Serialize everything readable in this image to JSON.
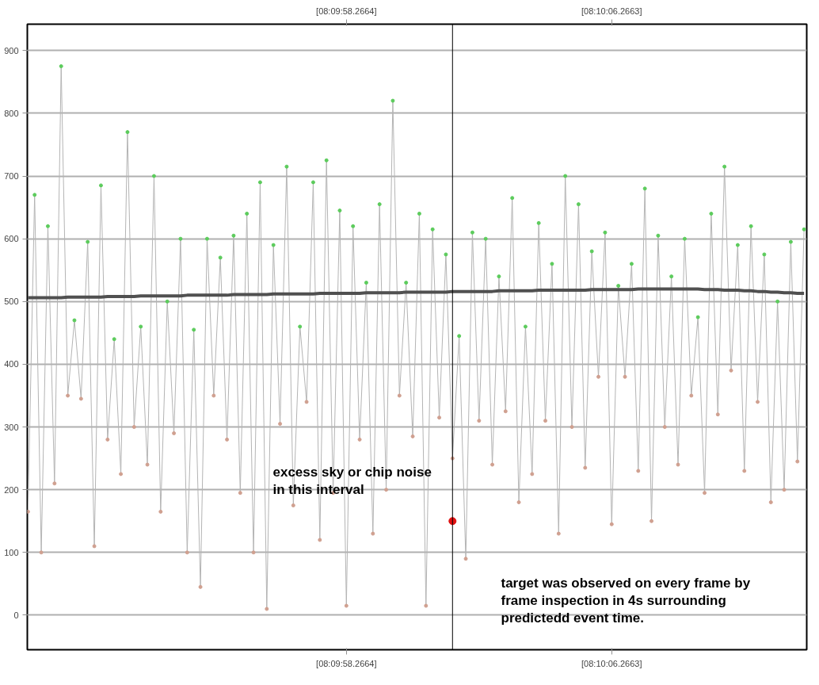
{
  "chart_data": {
    "type": "line",
    "categories": [
      null,
      null,
      null,
      null,
      null,
      null,
      null,
      null,
      null,
      null,
      null,
      null,
      null,
      null,
      null,
      null,
      null,
      null,
      null,
      null,
      null,
      null,
      null,
      null,
      null,
      null,
      null,
      null,
      null,
      null,
      null,
      null,
      null,
      null,
      null,
      null,
      null,
      null,
      null,
      null,
      null,
      null,
      null,
      null,
      null,
      null,
      null,
      null,
      "[08:09:58.2664]",
      null,
      null,
      null,
      null,
      null,
      null,
      null,
      null,
      null,
      null,
      null,
      null,
      null,
      null,
      null,
      null,
      null,
      null,
      null,
      null,
      null,
      null,
      null,
      null,
      null,
      null,
      null,
      null,
      null,
      null,
      null,
      null,
      null,
      null,
      null,
      null,
      null,
      null,
      null,
      "[08:10:06.2663]",
      null,
      null,
      null,
      null,
      null,
      null,
      null,
      null,
      null,
      null,
      null,
      null,
      null,
      null,
      null,
      null,
      null,
      null,
      null,
      null,
      null,
      null,
      null,
      null,
      null,
      null,
      null,
      null,
      null
    ],
    "ylim": [
      -55,
      942
    ],
    "yticks": [
      0,
      100,
      200,
      300,
      400,
      500,
      600,
      700,
      800,
      900
    ],
    "grid": "y",
    "marker": "circle",
    "line_style": "solid",
    "series": [
      {
        "type": "line",
        "color": "#b4b4b4",
        "values": [
          165,
          670,
          100,
          620,
          210,
          875,
          350,
          470,
          345,
          595,
          110,
          685,
          280,
          440,
          225,
          770,
          300,
          460,
          240,
          700,
          165,
          500,
          290,
          600,
          100,
          455,
          45,
          600,
          350,
          570,
          280,
          605,
          195,
          640,
          100,
          690,
          10,
          590,
          305,
          715,
          175,
          460,
          340,
          690,
          120,
          725,
          195,
          645,
          15,
          620,
          280,
          530,
          130,
          655,
          200,
          820,
          350,
          530,
          285,
          640,
          15,
          615,
          315,
          575,
          250,
          445,
          90,
          610,
          310,
          600,
          240,
          540,
          325,
          665,
          180,
          460,
          225,
          625,
          310,
          560,
          130,
          700,
          300,
          655,
          235,
          580,
          380,
          610,
          145,
          525,
          380,
          560,
          230,
          680,
          150,
          605,
          300,
          540,
          240,
          600,
          350,
          475,
          195,
          640,
          320,
          715,
          390,
          590,
          230,
          620,
          340,
          575,
          180,
          500,
          200,
          595,
          245,
          615
        ],
        "colors": [
          "#d0a090",
          "#5ccc5c",
          "#d0a090",
          "#5ccc5c",
          "#d0a090",
          "#5ccc5c",
          "#d0a090",
          "#5ccc5c",
          "#d0a090",
          "#5ccc5c",
          "#d0a090",
          "#5ccc5c",
          "#d0a090",
          "#5ccc5c",
          "#d0a090",
          "#5ccc5c",
          "#d0a090",
          "#5ccc5c",
          "#d0a090",
          "#5ccc5c",
          "#d0a090",
          "#5ccc5c",
          "#d0a090",
          "#5ccc5c",
          "#d0a090",
          "#5ccc5c",
          "#d0a090",
          "#5ccc5c",
          "#d0a090",
          "#5ccc5c",
          "#d0a090",
          "#5ccc5c",
          "#d0a090",
          "#5ccc5c",
          "#d0a090",
          "#5ccc5c",
          "#d0a090",
          "#5ccc5c",
          "#d0a090",
          "#5ccc5c",
          "#d0a090",
          "#5ccc5c",
          "#d0a090",
          "#5ccc5c",
          "#d0a090",
          "#5ccc5c",
          "#d0a090",
          "#5ccc5c",
          "#d0a090",
          "#5ccc5c",
          "#d0a090",
          "#5ccc5c",
          "#d0a090",
          "#5ccc5c",
          "#d0a090",
          "#5ccc5c",
          "#d0a090",
          "#5ccc5c",
          "#d0a090",
          "#5ccc5c",
          "#d0a090",
          "#5ccc5c",
          "#d0a090",
          "#5ccc5c",
          "#d0a090",
          "#5ccc5c",
          "#d0a090",
          "#5ccc5c",
          "#d0a090",
          "#5ccc5c",
          "#d0a090",
          "#5ccc5c",
          "#d0a090",
          "#5ccc5c",
          "#d0a090",
          "#5ccc5c",
          "#d0a090",
          "#5ccc5c",
          "#d0a090",
          "#5ccc5c",
          "#d0a090",
          "#5ccc5c",
          "#d0a090",
          "#5ccc5c",
          "#d0a090",
          "#5ccc5c",
          "#d0a090",
          "#5ccc5c",
          "#d0a090",
          "#5ccc5c",
          "#d0a090",
          "#5ccc5c",
          "#d0a090",
          "#5ccc5c",
          "#d0a090",
          "#5ccc5c",
          "#d0a090",
          "#5ccc5c",
          "#d0a090",
          "#5ccc5c",
          "#d0a090",
          "#5ccc5c",
          "#d0a090",
          "#5ccc5c",
          "#d0a090",
          "#5ccc5c",
          "#d0a090",
          "#5ccc5c",
          "#d0a090",
          "#5ccc5c",
          "#d0a090",
          "#5ccc5c",
          "#d0a090",
          "#5ccc5c",
          "#d0a090",
          "#5ccc5c",
          "#d0a090",
          "#5ccc5c"
        ]
      },
      {
        "type": "line",
        "color": "#505050",
        "marker": "none",
        "values": [
          506,
          506,
          506,
          506,
          506,
          506,
          507,
          507,
          507,
          507,
          507,
          507,
          508,
          508,
          508,
          508,
          508,
          509,
          509,
          509,
          509,
          509,
          509,
          509,
          510,
          510,
          510,
          510,
          510,
          510,
          510,
          511,
          511,
          511,
          511,
          511,
          511,
          512,
          512,
          512,
          512,
          512,
          512,
          512,
          513,
          513,
          513,
          513,
          513,
          513,
          513,
          514,
          514,
          514,
          514,
          514,
          514,
          515,
          515,
          515,
          515,
          515,
          515,
          515,
          516,
          516,
          516,
          516,
          516,
          516,
          516,
          517,
          517,
          517,
          517,
          517,
          517,
          518,
          518,
          518,
          518,
          518,
          518,
          518,
          518,
          519,
          519,
          519,
          519,
          519,
          519,
          519,
          520,
          520,
          520,
          520,
          520,
          520,
          520,
          520,
          520,
          520,
          519,
          519,
          519,
          518,
          518,
          518,
          517,
          517,
          516,
          516,
          515,
          515,
          514,
          514,
          513,
          513
        ]
      },
      {
        "type": "scatter",
        "color": "#e01010",
        "values": [
          null,
          null,
          null,
          null,
          null,
          null,
          null,
          null,
          null,
          null,
          null,
          null,
          null,
          null,
          null,
          null,
          null,
          null,
          null,
          null,
          null,
          null,
          null,
          null,
          null,
          null,
          null,
          null,
          null,
          null,
          null,
          null,
          null,
          null,
          null,
          null,
          null,
          null,
          null,
          null,
          null,
          null,
          null,
          null,
          null,
          null,
          null,
          null,
          null,
          null,
          null,
          null,
          null,
          null,
          null,
          null,
          null,
          null,
          null,
          null,
          null,
          null,
          null,
          null,
          150,
          null,
          null,
          null,
          null,
          null,
          null,
          null,
          null,
          null,
          null,
          null,
          null,
          null,
          null,
          null,
          null,
          null,
          null,
          null,
          null,
          null,
          null,
          null,
          null,
          null,
          null,
          null,
          null,
          null,
          null,
          null,
          null,
          null,
          null,
          null,
          null,
          null,
          null,
          null,
          null,
          null,
          null,
          null,
          null,
          null,
          null,
          null,
          null,
          null,
          null,
          null,
          null,
          null
        ]
      }
    ],
    "ref_lines": [
      {
        "axis": "x",
        "color": "#000000"
      }
    ],
    "annotations": [
      "excess sky or chip noise in this interval",
      "target was observed on every frame by frame inspection in 4s surrounding predictedd event time."
    ]
  }
}
